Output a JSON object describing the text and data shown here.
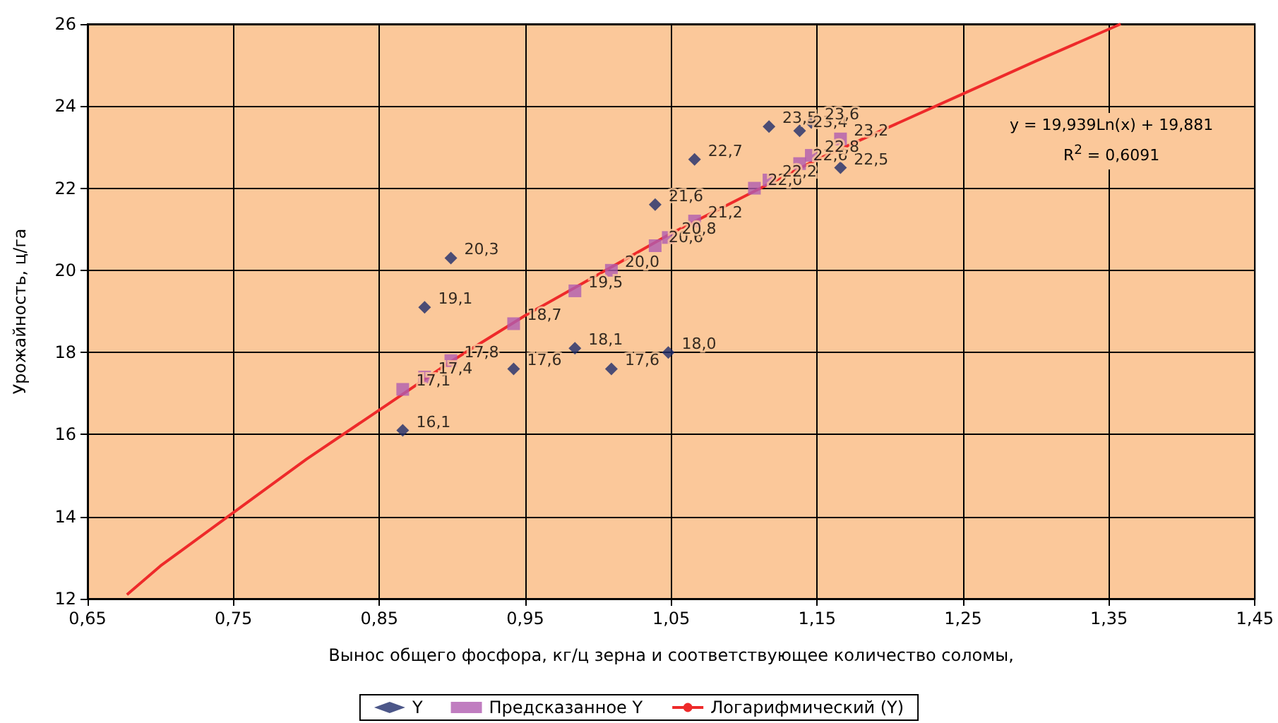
{
  "chart_data": {
    "type": "scatter",
    "xlabel": "Вынос общего фосфора, кг/ц зерна и соответствующее количество соломы,",
    "ylabel": "Урожайность, ц/га",
    "xlim": [
      0.65,
      1.45
    ],
    "xticks": [
      {
        "value": 0.65,
        "label": "0,65"
      },
      {
        "value": 0.75,
        "label": "0,75"
      },
      {
        "value": 0.85,
        "label": "0,85"
      },
      {
        "value": 0.95,
        "label": "0,95"
      },
      {
        "value": 1.05,
        "label": "1,05"
      },
      {
        "value": 1.15,
        "label": "1,15"
      },
      {
        "value": 1.25,
        "label": "1,25"
      },
      {
        "value": 1.35,
        "label": "1,35"
      },
      {
        "value": 1.45,
        "label": "1,45"
      }
    ],
    "ylim": [
      12,
      26
    ],
    "yticks": [
      12,
      14,
      16,
      18,
      20,
      22,
      24,
      26
    ],
    "grid": true,
    "legend": "bottom",
    "annotations": [
      "y = 19,939Ln(x) + 19,881",
      "R$^{2}$ = 0,6091"
    ],
    "series": [
      {
        "name": "Y",
        "marker": "diamond",
        "color": "#1f2d6b",
        "x": [
          0.866,
          0.881,
          0.899,
          0.942,
          0.984,
          1.009,
          1.039,
          1.048,
          1.066,
          1.117,
          1.138,
          1.146,
          1.166
        ],
        "values": [
          16.1,
          19.1,
          20.3,
          17.6,
          18.1,
          17.6,
          21.6,
          18.0,
          22.7,
          23.5,
          23.4,
          23.6,
          22.5
        ],
        "value_labels": [
          "16,1",
          "19,1",
          "20,3",
          "17,6",
          "18,1",
          "17,6",
          "21,6",
          "18,0",
          "22,7",
          "23,5",
          "23,4",
          "23,6",
          "22,5"
        ]
      },
      {
        "name": "Предсказанное Y",
        "marker": "square",
        "color": "#b05cb0",
        "x": [
          0.866,
          0.881,
          0.899,
          0.942,
          0.984,
          1.009,
          1.039,
          1.048,
          1.066,
          1.107,
          1.117,
          1.138,
          1.146,
          1.166
        ],
        "values": [
          17.1,
          17.4,
          17.8,
          18.7,
          19.5,
          20.0,
          20.6,
          20.8,
          21.2,
          22.0,
          22.2,
          22.6,
          22.8,
          23.2
        ],
        "value_labels": [
          "17,1",
          "17,4",
          "17,8",
          "18,7",
          "19,5",
          "20,0",
          "20,6",
          "20,8",
          "21,2",
          "22,0",
          "22,2",
          "22,6",
          "22,8",
          "23,2"
        ]
      },
      {
        "name": "Логарифмический (Y)",
        "type": "line",
        "marker": "none",
        "color": "#ee2a2a",
        "x": [
          0.677,
          0.7,
          0.75,
          0.8,
          0.85,
          0.9,
          0.95,
          1.0,
          1.05,
          1.1,
          1.15,
          1.2,
          1.25,
          1.3,
          1.358
        ],
        "values": [
          12.1,
          12.8,
          14.1,
          15.4,
          16.6,
          17.8,
          18.9,
          19.9,
          20.9,
          21.8,
          22.7,
          23.5,
          24.3,
          25.1,
          26.0
        ]
      }
    ]
  }
}
